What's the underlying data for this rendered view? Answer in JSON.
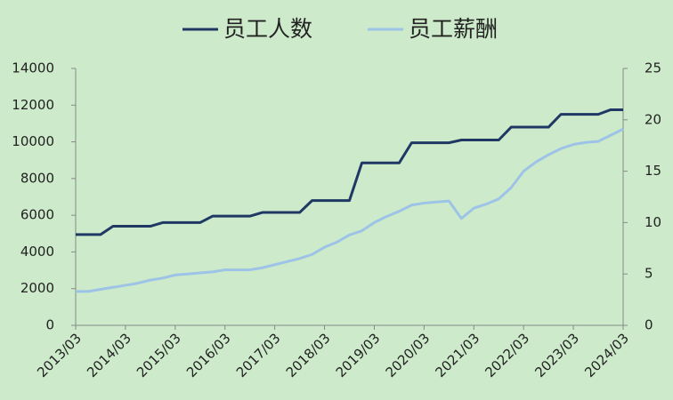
{
  "chart_data": {
    "type": "line",
    "categories": [
      "2013/03",
      null,
      null,
      null,
      "2014/03",
      null,
      null,
      null,
      "2015/03",
      null,
      null,
      null,
      "2016/03",
      null,
      null,
      null,
      "2017/03",
      null,
      null,
      null,
      "2018/03",
      null,
      null,
      null,
      "2019/03",
      null,
      null,
      null,
      "2020/03",
      null,
      null,
      null,
      "2021/03",
      null,
      null,
      null,
      "2022/03",
      null,
      null,
      null,
      "2023/03",
      null,
      null,
      null,
      "2024/03"
    ],
    "series": [
      {
        "name": "员工人数",
        "color": "#1f3864",
        "values": [
          4950,
          4950,
          4950,
          5400,
          5400,
          5400,
          5400,
          5600,
          5600,
          5600,
          5600,
          5950,
          5950,
          5950,
          5950,
          6150,
          6150,
          6150,
          6150,
          6800,
          6800,
          6800,
          6800,
          8850,
          8850,
          8850,
          8850,
          9950,
          9950,
          9950,
          9950,
          10100,
          10100,
          10100,
          10100,
          10800,
          10800,
          10800,
          10800,
          11500,
          11500,
          11500,
          11500,
          11750,
          11750
        ]
      },
      {
        "name": "员工薪酬",
        "color": "#9dc3e6",
        "axis": "y2",
        "values": [
          3.3,
          3.3,
          3.5,
          3.7,
          3.9,
          4.1,
          4.4,
          4.6,
          4.9,
          5.0,
          5.1,
          5.2,
          5.4,
          5.4,
          5.4,
          5.6,
          5.9,
          6.2,
          6.5,
          6.9,
          7.6,
          8.1,
          8.8,
          9.2,
          10.0,
          10.6,
          11.1,
          11.7,
          11.9,
          12.0,
          12.1,
          10.4,
          11.4,
          11.8,
          12.3,
          13.4,
          15.0,
          15.9,
          16.6,
          17.2,
          17.6,
          17.8,
          17.9,
          18.5,
          19.1
        ]
      }
    ],
    "ylim": [
      0,
      14000
    ],
    "yticks": [
      0,
      2000,
      4000,
      6000,
      8000,
      10000,
      12000,
      14000
    ],
    "y2lim": [
      0,
      25
    ],
    "y2ticks": [
      0,
      5,
      10,
      15,
      20,
      25
    ],
    "grid": false,
    "legend": "top"
  }
}
